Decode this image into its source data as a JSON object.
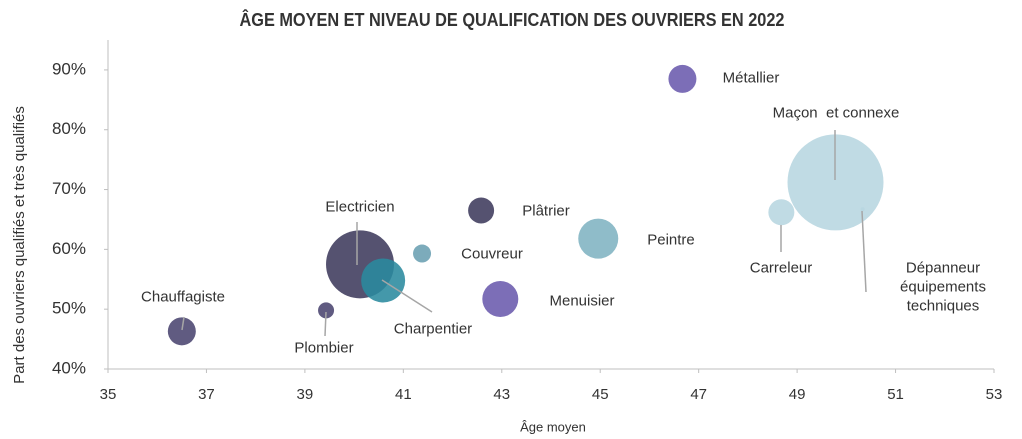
{
  "chart_data": {
    "type": "bubble",
    "title": "ÂGE MOYEN ET NIVEAU DE QUALIFICATION DES OUVRIERS EN 2022",
    "x_label": "Âge moyen",
    "y_label": "Part des ouvriers qualifiés et très qualifiés",
    "xlim": [
      35,
      53
    ],
    "xticks": [
      35,
      37,
      39,
      41,
      43,
      45,
      47,
      49,
      51,
      53
    ],
    "ylim": [
      40,
      95
    ],
    "yticks": [
      {
        "value": 40,
        "label": "40%"
      },
      {
        "value": 50,
        "label": "50%"
      },
      {
        "value": 60,
        "label": "60%"
      },
      {
        "value": 70,
        "label": "70%"
      },
      {
        "value": 80,
        "label": "80%"
      },
      {
        "value": 90,
        "label": "90%"
      }
    ],
    "grid": false,
    "points": [
      {
        "name": "Chauffagiste",
        "x": 36.5,
        "y": 46.3,
        "size": 196,
        "color": "#4a4470"
      },
      {
        "name": "Plombier",
        "x": 39.43,
        "y": 49.8,
        "size": 64,
        "color": "#4a4470"
      },
      {
        "name": "Electricien",
        "x": 40.12,
        "y": 57.5,
        "size": 1156,
        "color": "#3e3a5c"
      },
      {
        "name": "Charpentier",
        "x": 40.59,
        "y": 54.8,
        "size": 484,
        "color": "#2a8a9e"
      },
      {
        "name": "Couvreur",
        "x": 41.38,
        "y": 59.3,
        "size": 81,
        "color": "#6a9fb2"
      },
      {
        "name": "Plâtrier",
        "x": 42.58,
        "y": 66.5,
        "size": 169,
        "color": "#3e3a5c"
      },
      {
        "name": "Menuisier",
        "x": 42.97,
        "y": 51.7,
        "size": 324,
        "color": "#6a5aad"
      },
      {
        "name": "Peintre",
        "x": 44.96,
        "y": 61.8,
        "size": 400,
        "color": "#7fb3c2"
      },
      {
        "name": "Métallier",
        "x": 46.67,
        "y": 88.5,
        "size": 196,
        "color": "#6a5aad"
      },
      {
        "name": "Carreleur",
        "x": 48.68,
        "y": 66.2,
        "size": 169,
        "color": "#b7d6e0"
      },
      {
        "name": "Maçon  et connexe",
        "x": 49.78,
        "y": 71.2,
        "size": 2304,
        "color": "#b7d6e0"
      },
      {
        "name": "Dépanneur équipements techniques",
        "x": 50.33,
        "y": 66.7,
        "size": 4,
        "color": "#b7d6e0"
      }
    ]
  }
}
